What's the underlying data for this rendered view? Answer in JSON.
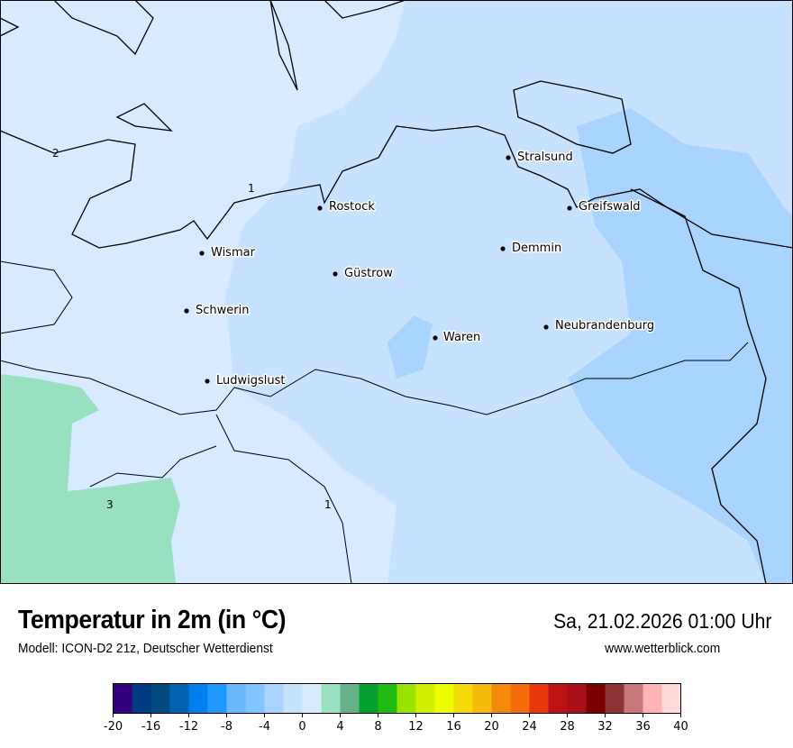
{
  "header": {
    "title": "Temperatur in 2m (in °C)",
    "subtitle": "Modell: ICON-D2 21z, Deutscher Wetterdienst",
    "datetime": "Sa, 21.02.2026 01:00 Uhr",
    "website": "www.wetterblick.com"
  },
  "map": {
    "cities": [
      {
        "name": "Stralsund"
      },
      {
        "name": "Rostock"
      },
      {
        "name": "Greifswald"
      },
      {
        "name": "Demmin"
      },
      {
        "name": "Wismar"
      },
      {
        "name": "Güstrow"
      },
      {
        "name": "Schwerin"
      },
      {
        "name": "Neubrandenburg"
      },
      {
        "name": "Waren"
      },
      {
        "name": "Ludwigslust"
      }
    ],
    "contour_labels": [
      "2",
      "1",
      "3",
      "1"
    ]
  },
  "legend": {
    "min": -20,
    "max": 40,
    "step": 2,
    "tick_labels": [
      "-20",
      "-16",
      "-12",
      "-8",
      "-4",
      "0",
      "4",
      "8",
      "12",
      "16",
      "20",
      "24",
      "28",
      "32",
      "36",
      "40"
    ],
    "colors": [
      "#330080",
      "#003a80",
      "#004a80",
      "#0062b0",
      "#0080f0",
      "#2098ff",
      "#6cb8ff",
      "#84c4ff",
      "#a8d4ff",
      "#c6e2ff",
      "#d8eaff",
      "#98e0c0",
      "#66b08a",
      "#06a030",
      "#20bb10",
      "#9ae200",
      "#d0f000",
      "#f0fc00",
      "#f4da08",
      "#f4bc08",
      "#f48a0c",
      "#f46c0c",
      "#e8380c",
      "#bc1414",
      "#aa1018",
      "#7a0000",
      "#8c3434",
      "#c87878",
      "#ffb4b4",
      "#ffd8d8"
    ]
  }
}
